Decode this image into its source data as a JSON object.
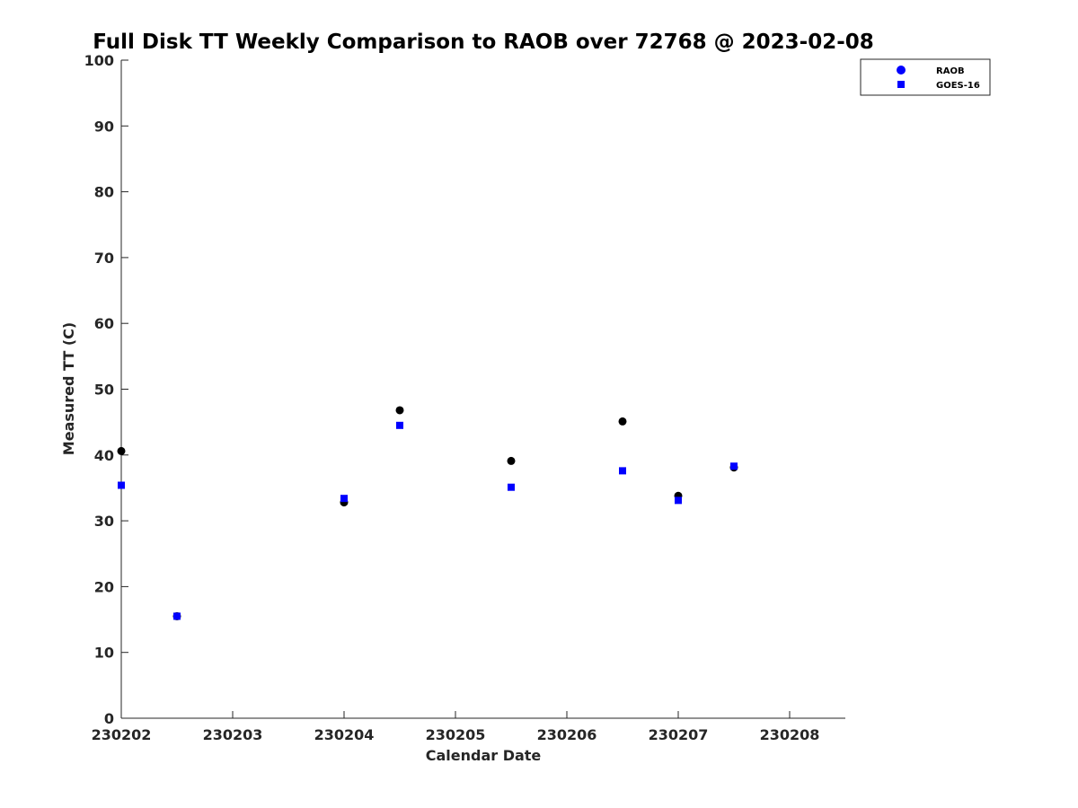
{
  "chart_data": {
    "type": "scatter",
    "title": "Full Disk TT Weekly Comparison to RAOB over 72768 @ 2023-02-08",
    "xlabel": "Calendar Date",
    "ylabel": "Measured TT (C)",
    "xlim": [
      230202,
      230208.5
    ],
    "ylim": [
      0,
      100
    ],
    "x_ticks": [
      230202,
      230203,
      230204,
      230205,
      230206,
      230207,
      230208
    ],
    "x_tick_labels": [
      "230202",
      "230203",
      "230204",
      "230205",
      "230206",
      "230207",
      "230208"
    ],
    "y_ticks": [
      0,
      10,
      20,
      30,
      40,
      50,
      60,
      70,
      80,
      90,
      100
    ],
    "y_tick_labels": [
      "0",
      "10",
      "20",
      "30",
      "40",
      "50",
      "60",
      "70",
      "80",
      "90",
      "100"
    ],
    "grid": false,
    "legend_position": "top-right, outside plot area",
    "series": [
      {
        "name": "RAOB",
        "marker": "circle",
        "color": "#000000",
        "legend_color": "#0000ff",
        "x": [
          230202,
          230202.5,
          230204,
          230204.5,
          230205.5,
          230206.5,
          230207,
          230207.5
        ],
        "y": [
          40.6,
          15.5,
          32.8,
          46.8,
          39.1,
          45.1,
          33.8,
          38.1
        ]
      },
      {
        "name": "GOES-16",
        "marker": "square",
        "color": "#0000ff",
        "x": [
          230202,
          230202.5,
          230204,
          230204.5,
          230205.5,
          230206.5,
          230207,
          230207.5
        ],
        "y": [
          35.4,
          15.5,
          33.4,
          44.5,
          35.1,
          37.6,
          33.1,
          38.3
        ]
      }
    ]
  }
}
